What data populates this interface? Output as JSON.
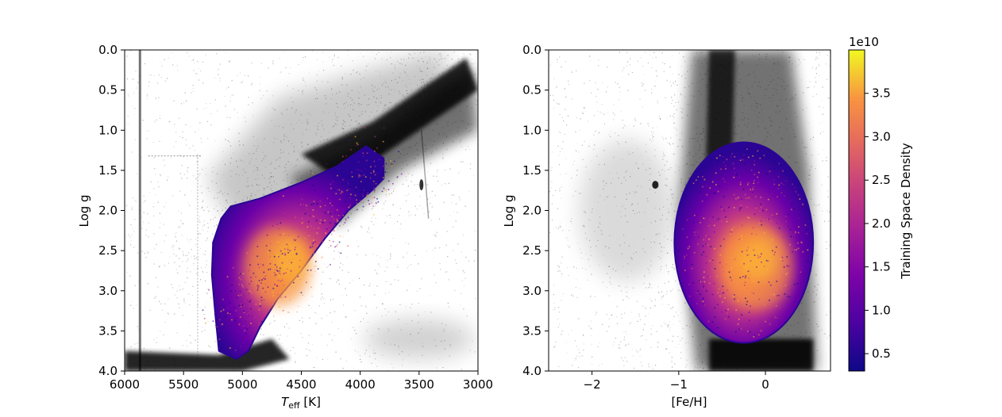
{
  "chart_data": [
    {
      "type": "scatter",
      "panel": "left",
      "description_series": [
        {
          "role": "background",
          "color": "#000000",
          "opacity": "low",
          "note": "full survey stellar density"
        },
        {
          "role": "training",
          "colormap": "plasma"
        }
      ],
      "xlabel": "T_eff [K]",
      "xlabel_main": "T",
      "xlabel_sub": "eff",
      "xlabel_unit": " [K]",
      "ylabel": "Log g",
      "xlim": [
        6000,
        3000
      ],
      "ylim": [
        4.0,
        0.0
      ],
      "x_reversed": true,
      "y_reversed": true,
      "xticks": [
        6000,
        5500,
        5000,
        4500,
        4000,
        3500,
        3000
      ],
      "xtick_labels": [
        "6000",
        "5500",
        "5000",
        "4500",
        "4000",
        "3500",
        "3000"
      ],
      "yticks": [
        0.0,
        0.5,
        1.0,
        1.5,
        2.0,
        2.5,
        3.0,
        3.5,
        4.0
      ],
      "ytick_labels": [
        "0.0",
        "0.5",
        "1.0",
        "1.5",
        "2.0",
        "2.5",
        "3.0",
        "3.5",
        "4.0"
      ],
      "training_region": {
        "teff_range": [
          5250,
          3800
        ],
        "logg_range": [
          1.2,
          3.9
        ],
        "peak": {
          "teff": 4700,
          "logg": 2.7
        }
      },
      "grid": false
    },
    {
      "type": "scatter",
      "panel": "right",
      "xlabel": "[Fe/H]",
      "ylabel": "Log g",
      "xlim": [
        -2.5,
        0.75
      ],
      "ylim": [
        4.0,
        0.0
      ],
      "y_reversed": true,
      "xticks": [
        -2,
        -1,
        0
      ],
      "xtick_labels": [
        "−2",
        "−1",
        "0"
      ],
      "yticks": [
        0.0,
        0.5,
        1.0,
        1.5,
        2.0,
        2.5,
        3.0,
        3.5,
        4.0
      ],
      "ytick_labels": [
        "0.0",
        "0.5",
        "1.0",
        "1.5",
        "2.0",
        "2.5",
        "3.0",
        "3.5",
        "4.0"
      ],
      "training_region": {
        "feh_range": [
          -1.05,
          0.55
        ],
        "logg_range": [
          1.15,
          3.65
        ],
        "peak": {
          "feh": -0.1,
          "logg": 2.7
        }
      },
      "grid": false
    }
  ],
  "colorbar": {
    "label": "Training Space Density",
    "multiplier": "1e10",
    "colormap": "plasma",
    "range": [
      0.3,
      4.0
    ],
    "ticks": [
      0.5,
      1.0,
      1.5,
      2.0,
      2.5,
      3.0,
      3.5
    ],
    "tick_labels": [
      "0.5",
      "1.0",
      "1.5",
      "2.0",
      "2.5",
      "3.0",
      "3.5"
    ]
  }
}
